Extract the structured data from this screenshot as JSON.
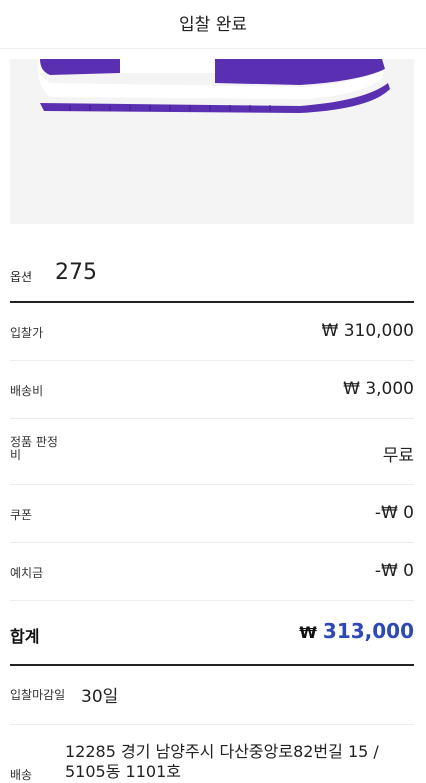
{
  "header": {
    "title": "입찰 완료"
  },
  "product": {
    "image_alt": "운동화 이미지"
  },
  "option": {
    "label": "옵션",
    "value": "275"
  },
  "rows": {
    "bid_price": {
      "label": "입찰가",
      "value": "₩ 310,000"
    },
    "shipping_fee": {
      "label": "배송비",
      "value": "₩ 3,000"
    },
    "authentication_fee": {
      "label": "정품 판정비",
      "value": "무료"
    },
    "coupon": {
      "label": "쿠폰",
      "value": "-₩ 0"
    },
    "deposit": {
      "label": "예치금",
      "value": "-₩ 0"
    }
  },
  "total": {
    "label": "합계",
    "currency": "₩",
    "amount": "313,000"
  },
  "deadline": {
    "label": "입찰마감일",
    "value": "30일"
  },
  "shipping": {
    "label": "배송",
    "address": "12285 경기 남양주시 다산중앙로82번길 15 / 5105동 1101호"
  },
  "colors": {
    "accent_blue": "#2e48b8",
    "shoe_purple": "#5a2fb2"
  }
}
